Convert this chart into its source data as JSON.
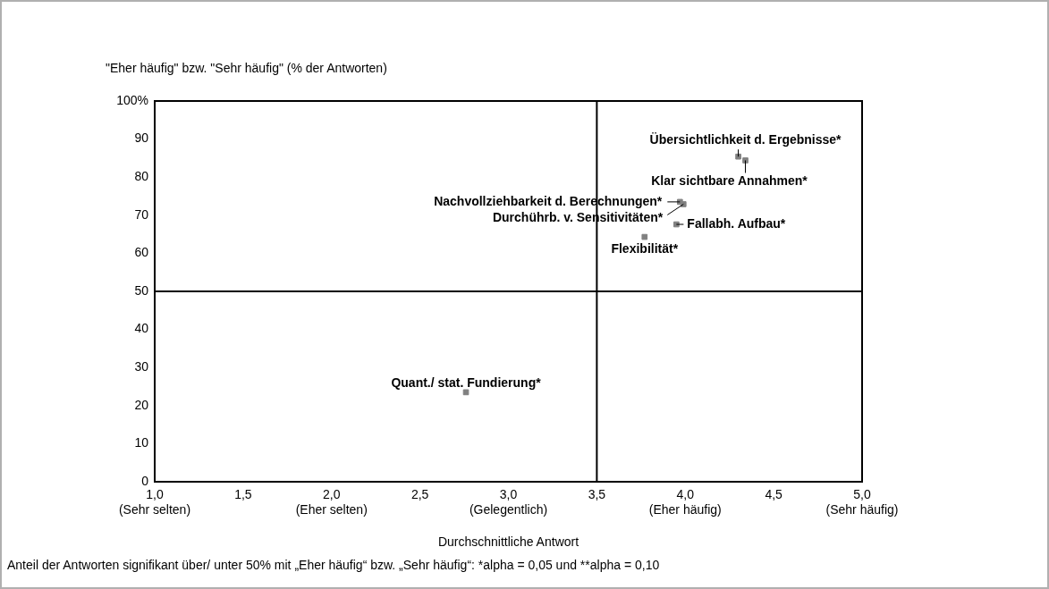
{
  "chart_data": {
    "type": "scatter",
    "ylabel": "\"Eher häufig\" bzw. \"Sehr häufig\" (% der Antworten)",
    "xlabel": "Durchschnittliche Antwort",
    "x": [
      4.3,
      4.34,
      3.97,
      3.99,
      3.95,
      3.77,
      2.76
    ],
    "values": [
      85.4,
      84.4,
      73.5,
      72.9,
      67.6,
      64.3,
      23.5
    ],
    "color": "#808080",
    "marker": "square",
    "xlim": [
      1,
      5
    ],
    "xticks": [
      {
        "value": 1,
        "label": "1,0\n(Sehr selten)"
      },
      {
        "value": 1.5,
        "label": "1,5"
      },
      {
        "value": 2,
        "label": "2,0\n(Eher selten)"
      },
      {
        "value": 2.5,
        "label": "2,5"
      },
      {
        "value": 3,
        "label": "3,0\n(Gelegentlich)"
      },
      {
        "value": 3.5,
        "label": "3,5"
      },
      {
        "value": 4,
        "label": "4,0\n(Eher häufig)"
      },
      {
        "value": 4.5,
        "label": "4,5"
      },
      {
        "value": 5,
        "label": "5,0\n(Sehr häufig)"
      }
    ],
    "ylim": [
      0,
      100
    ],
    "yticks": [
      0,
      10,
      20,
      30,
      40,
      50,
      60,
      70,
      80,
      90,
      {
        "value": 100,
        "label": "100%"
      }
    ],
    "ref_lines": [
      {
        "axis": "y",
        "value": 50,
        "color": "#000000"
      },
      {
        "axis": "x",
        "value": 3.5,
        "color": "#000000"
      }
    ],
    "annotations": [
      {
        "text": "Übersichtlichkeit d. Ergebnisse*",
        "x": 4.3,
        "y": 85.4
      },
      {
        "text": "Klar sichtbare Annahmen*",
        "x": 4.34,
        "y": 84.4
      },
      {
        "text": "Nachvollziehbarkeit d. Berechnungen*",
        "x": 3.97,
        "y": 73.5
      },
      {
        "text": "Durchührb. v. Sensitivitäten*",
        "x": 3.99,
        "y": 72.9
      },
      {
        "text": "Fallabh. Aufbau*",
        "x": 3.95,
        "y": 67.6
      },
      {
        "text": "Flexibilität*",
        "x": 3.77,
        "y": 64.3
      },
      {
        "text": "Quant./ stat. Fundierung*",
        "x": 2.76,
        "y": 23.5
      },
      "Anteil der Antworten signifikant über/ unter 50% mit „Eher häufig“ bzw. „Sehr häufig“: *alpha = 0,05 und **alpha = 0,10"
    ],
    "grid": false,
    "legend": false
  }
}
